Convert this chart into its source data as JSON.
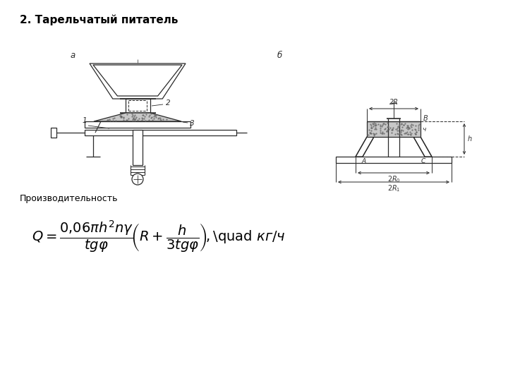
{
  "title": "2. Тарельчатый питатель",
  "subtitle": "Производительность",
  "bg_color": "#ffffff",
  "text_color": "#000000",
  "line_color": "#2a2a2a",
  "title_fontsize": 11,
  "subtitle_fontsize": 9,
  "formula_fontsize": 14,
  "label_a": "а",
  "label_b": "б",
  "fig_w": 7.2,
  "fig_h": 5.4,
  "dpi": 100
}
